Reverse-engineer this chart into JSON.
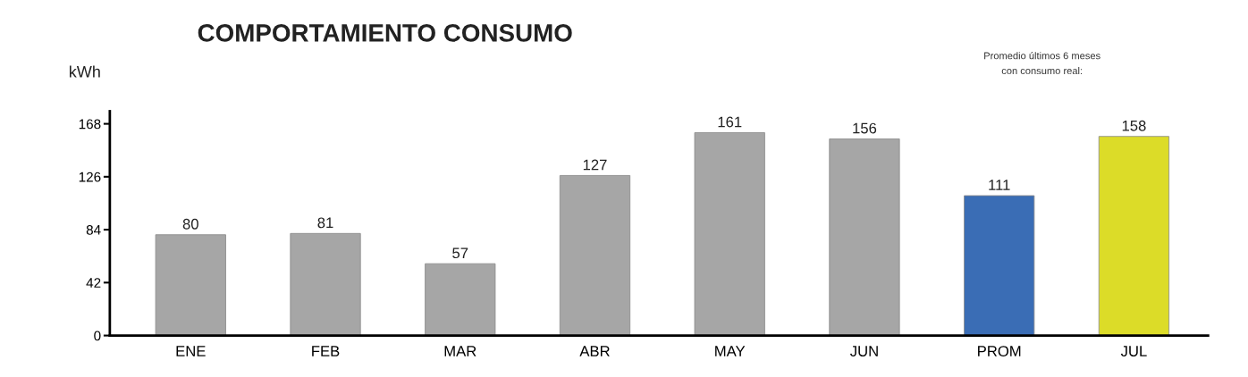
{
  "chart_data": {
    "type": "bar",
    "title": "COMPORTAMIENTO CONSUMO",
    "ylabel": "kWh",
    "categories": [
      "ENE",
      "FEB",
      "MAR",
      "ABR",
      "MAY",
      "JUN",
      "PROM",
      "JUL"
    ],
    "values": [
      80,
      81,
      57,
      127,
      161,
      156,
      111,
      158
    ],
    "colors": [
      "#a6a6a6",
      "#a6a6a6",
      "#a6a6a6",
      "#a6a6a6",
      "#a6a6a6",
      "#a6a6a6",
      "#3a6db5",
      "#dcdc28"
    ],
    "data_labels": true,
    "ylim": [
      0,
      178
    ],
    "yticks": [
      0,
      42,
      84,
      126,
      168
    ],
    "annotations": [
      "Promedio últimos 6 meses\ncon consumo real:"
    ],
    "grid": false,
    "legend": false
  }
}
